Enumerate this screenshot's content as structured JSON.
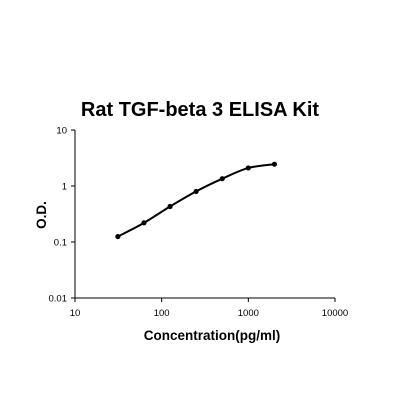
{
  "chart_data": {
    "type": "scatter",
    "title": "Rat TGF-beta 3 ELISA Kit",
    "xlabel": "Concentration(pg/ml)",
    "ylabel": "O.D.",
    "x_scale": "log",
    "y_scale": "log",
    "xlim": [
      10,
      10000
    ],
    "ylim": [
      0.01,
      10
    ],
    "x_ticks": [
      "10",
      "100",
      "1000",
      "10000"
    ],
    "y_ticks": [
      "0.01",
      "0.1",
      "1",
      "10"
    ],
    "grid": false,
    "series": [
      {
        "x": [
          31.25,
          62.5,
          125,
          250,
          500,
          1000,
          2000
        ],
        "y": [
          0.125,
          0.22,
          0.43,
          0.8,
          1.35,
          2.1,
          2.45
        ]
      }
    ],
    "fit_curve": true
  }
}
